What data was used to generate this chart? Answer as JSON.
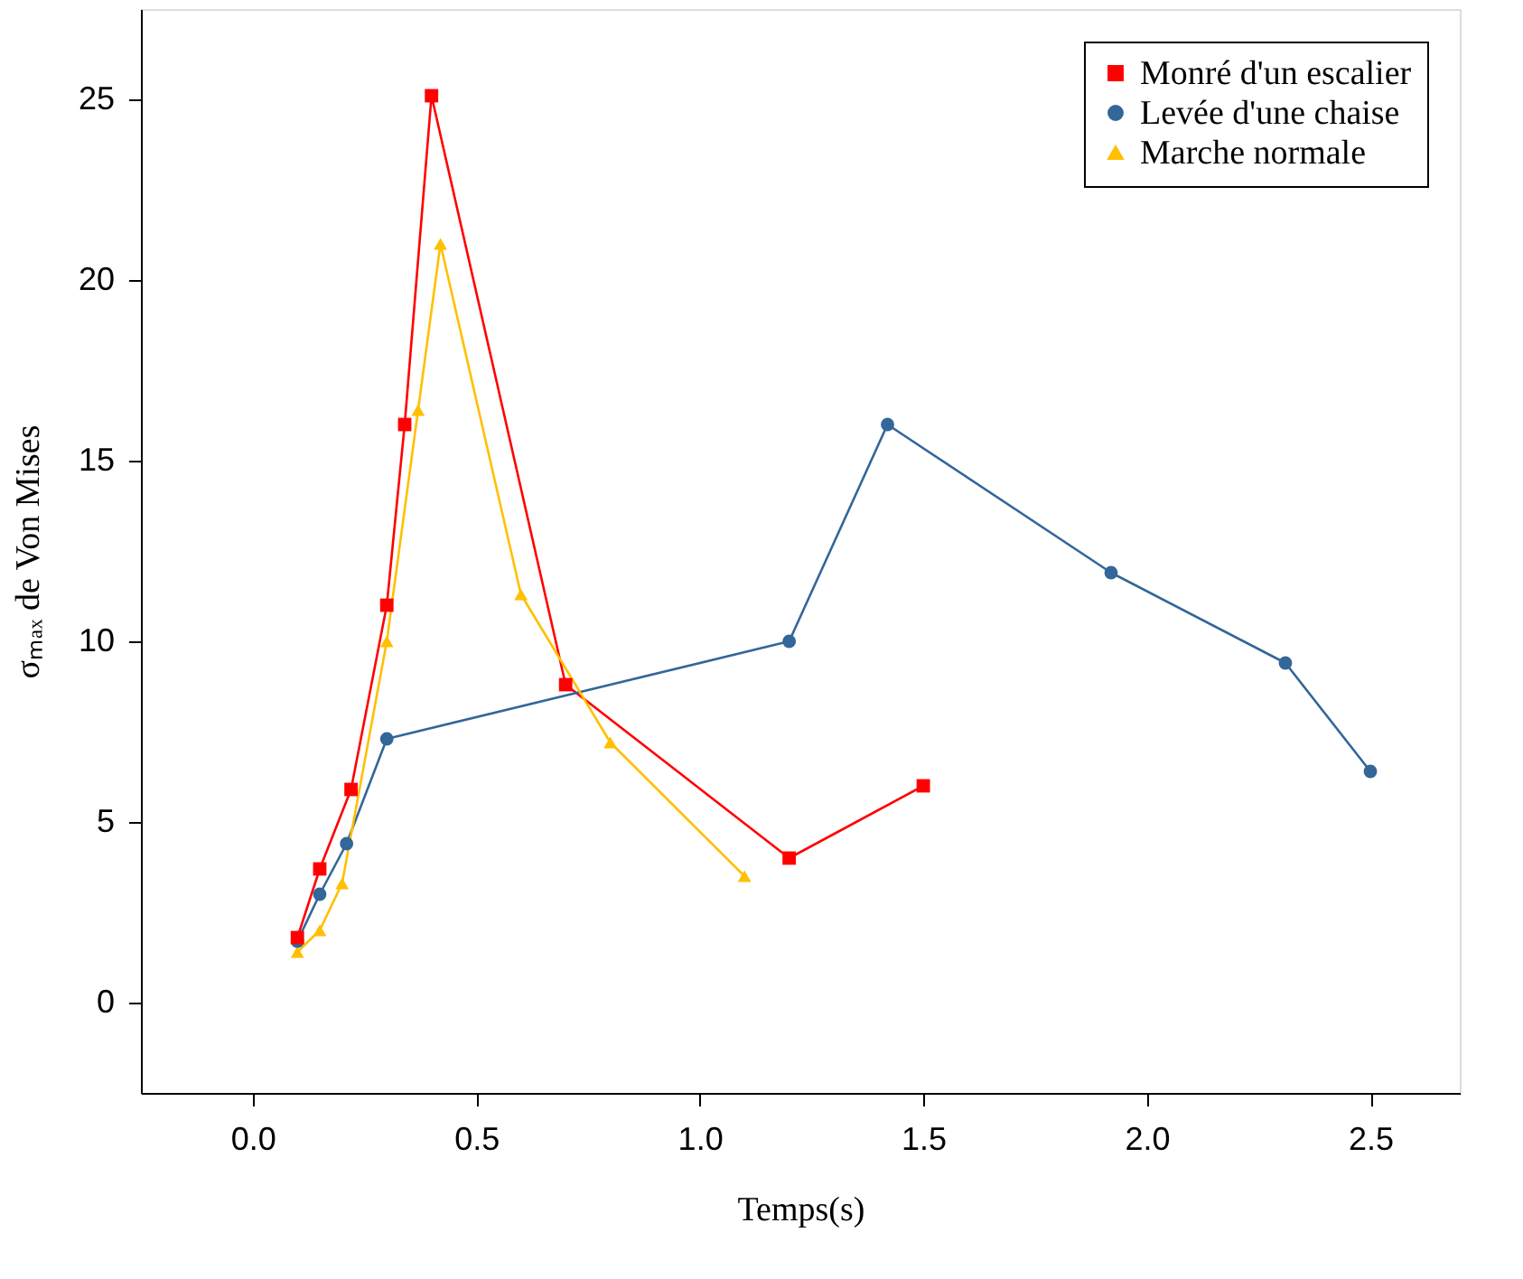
{
  "chart_data": {
    "type": "line",
    "xlabel": "Temps(s)",
    "ylabel": "σₘₐₓ de Von Mises",
    "xlim": [
      -0.25,
      2.7
    ],
    "ylim": [
      -2.5,
      27.5
    ],
    "xticks": [
      {
        "value": 0,
        "label": "0.0"
      },
      {
        "value": 0.5,
        "label": "0.5"
      },
      {
        "value": 1,
        "label": "1.0"
      },
      {
        "value": 1.5,
        "label": "1.5"
      },
      {
        "value": 2,
        "label": "2.0"
      },
      {
        "value": 2.5,
        "label": "2.5"
      }
    ],
    "yticks": [
      0,
      5,
      10,
      15,
      20,
      25
    ],
    "grid": false,
    "legend": "top right",
    "line_style": "solid",
    "series": [
      {
        "name": "Monré d'un escalier",
        "color": "#ff0000",
        "marker": "square",
        "x": [
          0.1,
          0.15,
          0.22,
          0.3,
          0.34,
          0.4,
          0.7,
          1.2,
          1.5
        ],
        "values": [
          1.8,
          3.7,
          5.9,
          11,
          16,
          25.1,
          8.8,
          4.0,
          6.0
        ]
      },
      {
        "name": "Levée d'une chaise",
        "color": "#336699",
        "marker": "circle",
        "x": [
          0.1,
          0.15,
          0.21,
          0.3,
          1.2,
          1.42,
          1.92,
          2.31,
          2.5
        ],
        "values": [
          1.7,
          3.0,
          4.4,
          7.3,
          10,
          16,
          11.9,
          9.4,
          6.4
        ]
      },
      {
        "name": "Marche normale",
        "color": "#ffc000",
        "marker": "triangle",
        "x": [
          0.1,
          0.15,
          0.2,
          0.3,
          0.37,
          0.42,
          0.6,
          0.8,
          1.1
        ],
        "values": [
          1.4,
          2.0,
          3.3,
          10,
          16.4,
          21,
          11.3,
          7.2,
          3.5
        ]
      }
    ]
  }
}
